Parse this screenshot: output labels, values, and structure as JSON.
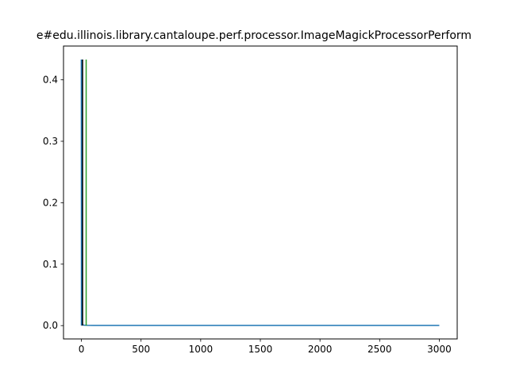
{
  "chart_data": {
    "type": "line",
    "title": "e#edu.illinois.library.cantaloupe.perf.processor.ImageMagickProcessorPerform",
    "xlabel": "",
    "ylabel": "",
    "xlim": [
      -150,
      3150
    ],
    "ylim": [
      -0.0217,
      0.455
    ],
    "x_ticks": [
      0,
      500,
      1000,
      1500,
      2000,
      2500,
      3000
    ],
    "x_tick_labels": [
      "0",
      "500",
      "1000",
      "1500",
      "2000",
      "2500",
      "3000"
    ],
    "y_ticks": [
      0.0,
      0.1,
      0.2,
      0.3,
      0.4
    ],
    "y_tick_labels": [
      "0.0",
      "0.1",
      "0.2",
      "0.3",
      "0.4"
    ],
    "grid": false,
    "legend": "none",
    "series": [
      {
        "color": "#1f77b4",
        "x": [
          0,
          1,
          2,
          3,
          5,
          10,
          20,
          50,
          100,
          200,
          500,
          1000,
          1500,
          2000,
          2500,
          3000
        ],
        "values": [
          0.433,
          0.2,
          0.05,
          0.01,
          0.003,
          0.0015,
          0.0008,
          0.0004,
          0.0003,
          0.0002,
          0.0002,
          0.0002,
          0.0002,
          0.0002,
          0.0002,
          0.0002
        ]
      }
    ],
    "vlines": [
      {
        "x": 0,
        "ymin": 0,
        "ymax": 0.433,
        "color": "#1f77b4"
      },
      {
        "x": 10,
        "ymin": 0,
        "ymax": 0.433,
        "color": "#000000"
      },
      {
        "x": 40,
        "ymin": 0,
        "ymax": 0.433,
        "color": "#2ca02c"
      }
    ]
  }
}
